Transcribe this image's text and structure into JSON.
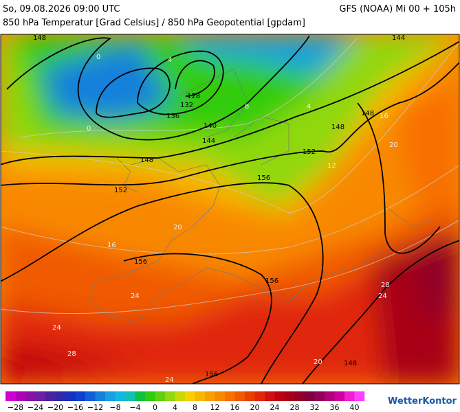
{
  "header": {
    "datetime": "So, 09.08.2026 09:00 UTC",
    "model": "GFS (NOAA) Mi 00 + 105h",
    "subtitle": "850 hPa Temperatur [Grad Celsius] / 850 hPa Geopotential [gpdam]"
  },
  "map": {
    "geopotential_labels": [
      "148",
      "144",
      "148",
      "152",
      "136",
      "132",
      "128",
      "140",
      "144",
      "148",
      "152",
      "156",
      "156",
      "156",
      "148",
      "156",
      "148"
    ],
    "temperature_labels": [
      "0",
      "0",
      "4",
      "4",
      "8",
      "12",
      "16",
      "16",
      "20",
      "20",
      "20",
      "24",
      "24",
      "24",
      "28",
      "28",
      "24"
    ]
  },
  "colorbar": {
    "labels": [
      "−28",
      "−24",
      "−20",
      "−16",
      "−12",
      "−8",
      "−4",
      "0",
      "4",
      "8",
      "12",
      "16",
      "20",
      "24",
      "28",
      "32",
      "36",
      "40"
    ],
    "colors": [
      "#d000d0",
      "#b000b8",
      "#8a10a8",
      "#6a20a0",
      "#4a22a0",
      "#3028a8",
      "#1830c0",
      "#1040d0",
      "#1060d8",
      "#1880dc",
      "#18a0e0",
      "#10b8e0",
      "#10c0b0",
      "#10c040",
      "#30cc10",
      "#60d010",
      "#90d810",
      "#c8d808",
      "#f8d000",
      "#f8b800",
      "#f8a000",
      "#f88800",
      "#f87000",
      "#f05a00",
      "#e84000",
      "#e02808",
      "#d01010",
      "#c00010",
      "#a80018",
      "#900028",
      "#800040",
      "#90005a",
      "#b00080",
      "#d000a0",
      "#f020d0",
      "#ff40ff"
    ]
  },
  "brand": "WetterKontor"
}
